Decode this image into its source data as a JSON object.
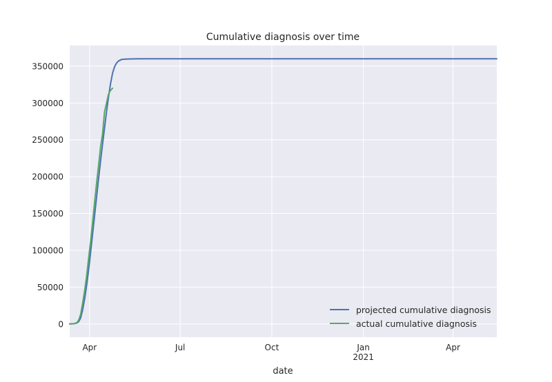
{
  "chart_data": {
    "type": "line",
    "title": "Cumulative diagnosis over time",
    "xlabel": "date",
    "ylabel": "",
    "x_axis_kind": "date",
    "xlim": [
      "2020-03-12",
      "2021-05-15"
    ],
    "ylim": [
      -18000,
      378000
    ],
    "x_ticks": [
      {
        "date": "2020-04-01",
        "label": "Apr",
        "sublabel": ""
      },
      {
        "date": "2020-07-01",
        "label": "Jul",
        "sublabel": ""
      },
      {
        "date": "2020-10-01",
        "label": "Oct",
        "sublabel": ""
      },
      {
        "date": "2021-01-01",
        "label": "Jan",
        "sublabel": "2021"
      },
      {
        "date": "2021-04-01",
        "label": "Apr",
        "sublabel": ""
      }
    ],
    "y_ticks": [
      0,
      50000,
      100000,
      150000,
      200000,
      250000,
      300000,
      350000
    ],
    "grid": true,
    "legend_position": "lower-right",
    "series": [
      {
        "name": "projected cumulative diagnosis",
        "color": "#4c72b0",
        "x": [
          "2020-03-12",
          "2020-03-16",
          "2020-03-19",
          "2020-03-21",
          "2020-03-23",
          "2020-03-25",
          "2020-03-27",
          "2020-03-29",
          "2020-03-31",
          "2020-04-02",
          "2020-04-04",
          "2020-04-06",
          "2020-04-08",
          "2020-04-10",
          "2020-04-12",
          "2020-04-14",
          "2020-04-16",
          "2020-04-18",
          "2020-04-20",
          "2020-04-22",
          "2020-04-24",
          "2020-04-26",
          "2020-04-28",
          "2020-04-30",
          "2020-05-03",
          "2020-05-07",
          "2020-05-12",
          "2020-05-20",
          "2020-06-01",
          "2020-07-01",
          "2020-10-01",
          "2021-01-01",
          "2021-05-15"
        ],
        "values": [
          0,
          300,
          1000,
          3000,
          8000,
          19000,
          34000,
          52000,
          73000,
          97000,
          122000,
          147000,
          172000,
          197000,
          221000,
          244000,
          266000,
          288000,
          308000,
          326000,
          340000,
          349000,
          354000,
          357000,
          359000,
          359500,
          359800,
          360000,
          360000,
          360000,
          360000,
          360000,
          360000
        ]
      },
      {
        "name": "actual cumulative diagnosis",
        "color": "#55a868",
        "x": [
          "2020-03-12",
          "2020-03-16",
          "2020-03-19",
          "2020-03-21",
          "2020-03-23",
          "2020-03-25",
          "2020-03-27",
          "2020-03-29",
          "2020-03-31",
          "2020-04-02",
          "2020-04-04",
          "2020-04-06",
          "2020-04-08",
          "2020-04-10",
          "2020-04-12",
          "2020-04-14",
          "2020-04-16",
          "2020-04-18",
          "2020-04-20",
          "2020-04-22",
          "2020-04-24"
        ],
        "values": [
          0,
          400,
          1500,
          5000,
          13000,
          28000,
          45000,
          65000,
          89000,
          112000,
          138000,
          165000,
          191000,
          215000,
          240000,
          258000,
          288000,
          300000,
          312000,
          317000,
          320000
        ]
      }
    ]
  }
}
